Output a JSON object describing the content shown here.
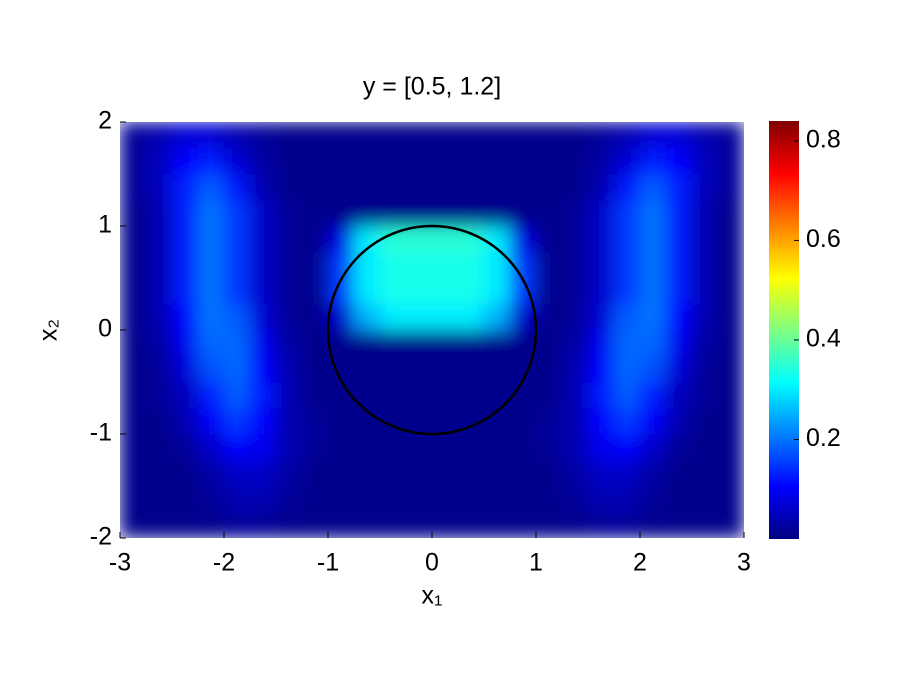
{
  "chart_data": {
    "type": "heatmap",
    "title": "y = [0.5, 1.2]",
    "xlabel": "x₁",
    "ylabel": "x₂",
    "xlim": [
      -3,
      3
    ],
    "ylim": [
      -2,
      2
    ],
    "xticks": [
      -3,
      -2,
      -1,
      0,
      1,
      2,
      3
    ],
    "yticks": [
      -2,
      -1,
      0,
      1,
      2
    ],
    "colormap": "jet",
    "clim": [
      0,
      0.84
    ],
    "cticks": [
      0.2,
      0.4,
      0.6,
      0.8
    ],
    "circle": {
      "center": [
        0,
        0
      ],
      "radius": 1,
      "color": "#000000"
    },
    "x": [
      -2.875,
      -2.625,
      -2.375,
      -2.125,
      -1.875,
      -1.625,
      -1.375,
      -1.125,
      -0.875,
      -0.625,
      -0.375,
      -0.125,
      0.125,
      0.375,
      0.625,
      0.875,
      1.125,
      1.375,
      1.625,
      1.875,
      2.125,
      2.375,
      2.625,
      2.875
    ],
    "y": [
      -1.875,
      -1.625,
      -1.375,
      -1.125,
      -0.875,
      -0.625,
      -0.375,
      -0.125,
      0.125,
      0.375,
      0.625,
      0.875,
      1.125,
      1.375,
      1.625,
      1.875
    ],
    "z": [
      [
        0.01,
        0.01,
        0.01,
        0.01,
        0.02,
        0.02,
        0.01,
        0.01,
        0.01,
        0.01,
        0.01,
        0.01,
        0.01,
        0.01,
        0.01,
        0.01,
        0.01,
        0.01,
        0.02,
        0.02,
        0.01,
        0.01,
        0.01,
        0.01
      ],
      [
        0.01,
        0.01,
        0.01,
        0.02,
        0.04,
        0.04,
        0.02,
        0.01,
        0.01,
        0.01,
        0.01,
        0.01,
        0.01,
        0.01,
        0.01,
        0.01,
        0.01,
        0.02,
        0.04,
        0.04,
        0.02,
        0.01,
        0.01,
        0.01
      ],
      [
        0.01,
        0.01,
        0.01,
        0.03,
        0.06,
        0.06,
        0.03,
        0.01,
        0.01,
        0.01,
        0.01,
        0.01,
        0.01,
        0.01,
        0.01,
        0.01,
        0.01,
        0.03,
        0.06,
        0.06,
        0.03,
        0.01,
        0.01,
        0.01
      ],
      [
        0.01,
        0.01,
        0.02,
        0.06,
        0.11,
        0.09,
        0.04,
        0.02,
        0.01,
        0.01,
        0.01,
        0.01,
        0.01,
        0.01,
        0.01,
        0.01,
        0.02,
        0.04,
        0.09,
        0.11,
        0.06,
        0.02,
        0.01,
        0.01
      ],
      [
        0.01,
        0.01,
        0.04,
        0.1,
        0.15,
        0.11,
        0.04,
        0.02,
        0.01,
        0.01,
        0.01,
        0.01,
        0.01,
        0.01,
        0.01,
        0.01,
        0.02,
        0.04,
        0.11,
        0.15,
        0.1,
        0.04,
        0.01,
        0.01
      ],
      [
        0.01,
        0.02,
        0.05,
        0.13,
        0.18,
        0.12,
        0.04,
        0.01,
        0.01,
        0.01,
        0.01,
        0.01,
        0.01,
        0.01,
        0.01,
        0.01,
        0.01,
        0.04,
        0.12,
        0.18,
        0.13,
        0.05,
        0.02,
        0.01
      ],
      [
        0.01,
        0.02,
        0.07,
        0.17,
        0.19,
        0.11,
        0.04,
        0.01,
        0.01,
        0.01,
        0.01,
        0.01,
        0.01,
        0.01,
        0.01,
        0.01,
        0.01,
        0.04,
        0.11,
        0.19,
        0.17,
        0.07,
        0.02,
        0.01
      ],
      [
        0.01,
        0.03,
        0.09,
        0.19,
        0.19,
        0.09,
        0.03,
        0.01,
        0.01,
        0.01,
        0.01,
        0.01,
        0.01,
        0.01,
        0.01,
        0.01,
        0.01,
        0.03,
        0.09,
        0.19,
        0.19,
        0.09,
        0.03,
        0.01
      ],
      [
        0.01,
        0.04,
        0.11,
        0.2,
        0.18,
        0.07,
        0.02,
        0.01,
        0.06,
        0.25,
        0.3,
        0.3,
        0.3,
        0.3,
        0.25,
        0.06,
        0.01,
        0.02,
        0.07,
        0.18,
        0.2,
        0.11,
        0.04,
        0.01
      ],
      [
        0.01,
        0.04,
        0.13,
        0.2,
        0.15,
        0.06,
        0.02,
        0.01,
        0.15,
        0.3,
        0.33,
        0.33,
        0.33,
        0.33,
        0.3,
        0.15,
        0.01,
        0.02,
        0.06,
        0.15,
        0.2,
        0.13,
        0.04,
        0.01
      ],
      [
        0.01,
        0.04,
        0.13,
        0.2,
        0.15,
        0.06,
        0.02,
        0.01,
        0.15,
        0.3,
        0.33,
        0.33,
        0.33,
        0.33,
        0.3,
        0.15,
        0.01,
        0.02,
        0.06,
        0.15,
        0.2,
        0.13,
        0.04,
        0.01
      ],
      [
        0.01,
        0.04,
        0.13,
        0.2,
        0.15,
        0.06,
        0.02,
        0.01,
        0.08,
        0.3,
        0.35,
        0.35,
        0.35,
        0.35,
        0.3,
        0.08,
        0.01,
        0.02,
        0.06,
        0.15,
        0.2,
        0.13,
        0.04,
        0.01
      ],
      [
        0.01,
        0.04,
        0.13,
        0.2,
        0.15,
        0.06,
        0.02,
        0.01,
        0.01,
        0.01,
        0.01,
        0.01,
        0.01,
        0.01,
        0.01,
        0.01,
        0.01,
        0.02,
        0.06,
        0.15,
        0.2,
        0.13,
        0.04,
        0.01
      ],
      [
        0.02,
        0.05,
        0.13,
        0.18,
        0.12,
        0.04,
        0.01,
        0.01,
        0.01,
        0.01,
        0.01,
        0.01,
        0.01,
        0.01,
        0.01,
        0.01,
        0.01,
        0.01,
        0.04,
        0.12,
        0.18,
        0.13,
        0.05,
        0.02
      ],
      [
        0.02,
        0.05,
        0.11,
        0.13,
        0.07,
        0.03,
        0.01,
        0.01,
        0.01,
        0.01,
        0.01,
        0.01,
        0.01,
        0.01,
        0.01,
        0.01,
        0.01,
        0.01,
        0.03,
        0.07,
        0.13,
        0.11,
        0.05,
        0.02
      ],
      [
        0.02,
        0.04,
        0.07,
        0.07,
        0.04,
        0.02,
        0.01,
        0.01,
        0.01,
        0.01,
        0.01,
        0.01,
        0.01,
        0.01,
        0.01,
        0.01,
        0.01,
        0.01,
        0.02,
        0.04,
        0.07,
        0.07,
        0.04,
        0.02
      ]
    ]
  }
}
